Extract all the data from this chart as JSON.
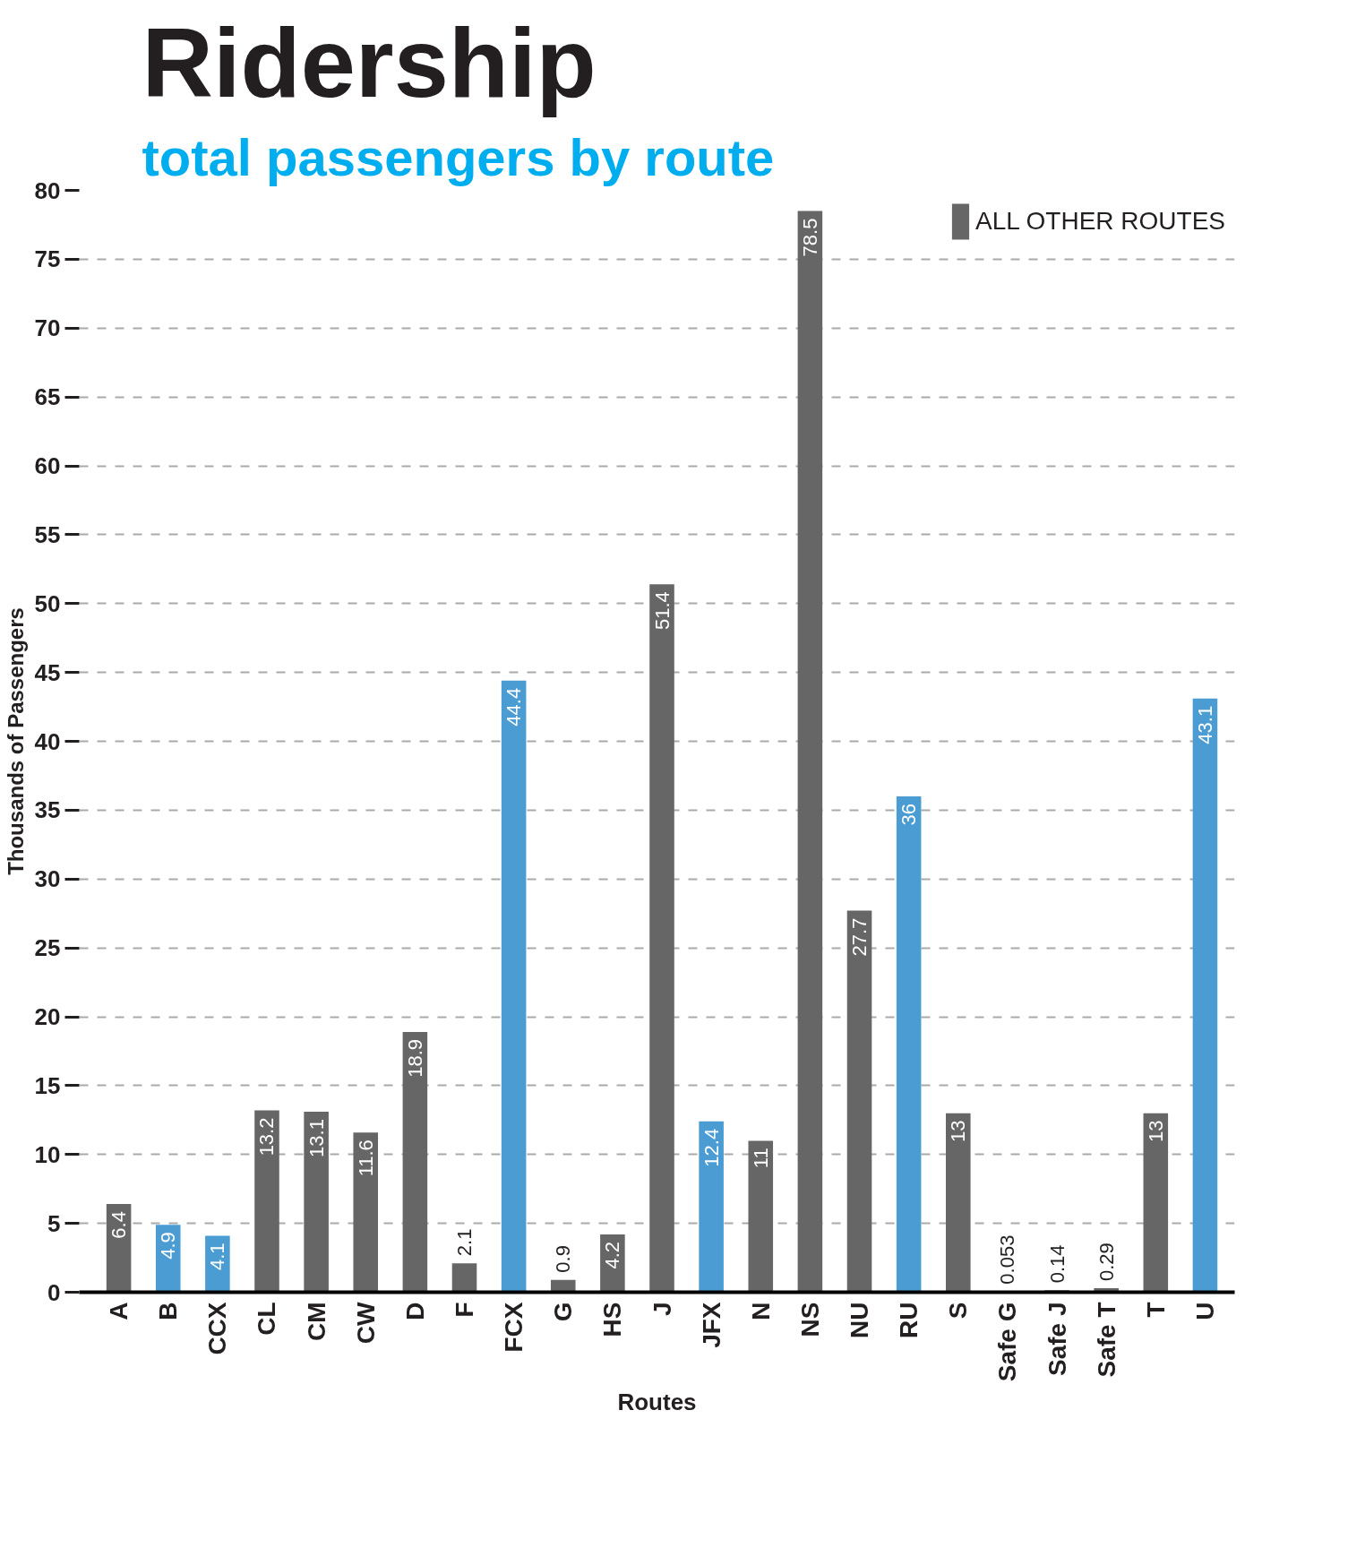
{
  "chart_data": {
    "type": "bar",
    "title": "Ridership",
    "subtitle": "total passengers by route",
    "xlabel": "Routes",
    "ylabel": "Thousands of Passengers",
    "categories": [
      "A",
      "B",
      "CCX",
      "CL",
      "CM",
      "CW",
      "D",
      "F",
      "FCX",
      "G",
      "HS",
      "J",
      "JFX",
      "N",
      "NS",
      "NU",
      "RU",
      "S",
      "Safe G",
      "Safe J",
      "Safe T",
      "T",
      "U"
    ],
    "series": [
      {
        "color": "#4b9cd3",
        "values": [
          null,
          4.9,
          4.1,
          null,
          null,
          null,
          null,
          null,
          44.4,
          null,
          null,
          null,
          12.4,
          null,
          null,
          null,
          36,
          null,
          null,
          null,
          null,
          null,
          43.1
        ]
      },
      {
        "name": "ALL OTHER ROUTES",
        "color": "#666666",
        "values": [
          6.4,
          null,
          null,
          13.2,
          13.1,
          11.6,
          18.9,
          2.1,
          null,
          0.9,
          4.2,
          51.4,
          null,
          11,
          78.5,
          27.7,
          null,
          13,
          0.053,
          0.14,
          0.29,
          13,
          null
        ]
      }
    ],
    "stacked": true,
    "data_labels": true,
    "ylim": [
      0,
      80
    ],
    "yticks": [
      0,
      5,
      10,
      15,
      20,
      25,
      30,
      35,
      40,
      45,
      50,
      55,
      60,
      65,
      70,
      75,
      80
    ],
    "grid": "y",
    "legend": "top right"
  }
}
